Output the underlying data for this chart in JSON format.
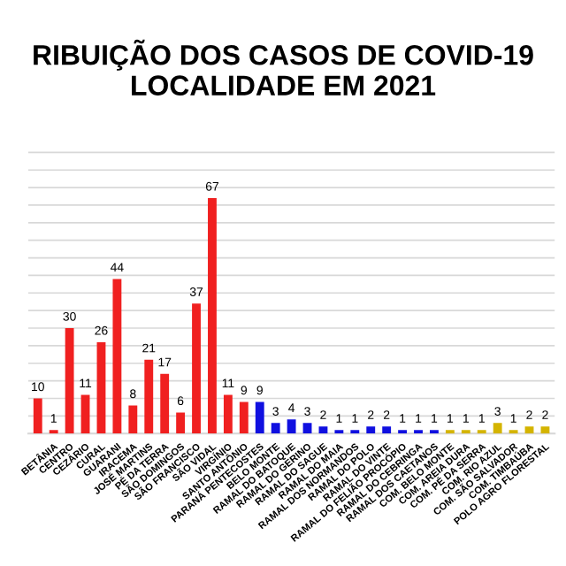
{
  "chart_data": {
    "type": "bar",
    "title": "RIBUIÇÃO DOS CASOS DE COVID-19\nLOCALIDADE EM 2021",
    "categories": [
      null,
      "BETÂNIA",
      "CENTRO",
      "CEZÁRIO",
      "CURAL",
      "GUARANI",
      "IRACEMA",
      "JOSÉ MARTINS",
      "PÉ DA TERRA",
      "SÃO DOMINGOS",
      "SÃO FRANCISCO",
      "SÃO VIDAL",
      "VIRGÍNIO",
      "SANTO ANTÔNIO",
      "PARANÁ PENTECOSTES",
      "BELO MONTE",
      "RAMAL DO BATOQUE",
      "RAMAL DO GERINO",
      "RAMAL DO SAGUE",
      "RAMAL DO MAIA",
      "RAMAL DOS NORMANDOS",
      "RAMAL DO POLO",
      "RAMAL DO VINTE",
      "RAMAL DO FELIÃO PROCÓPIO",
      "RAMAL DO CEBRINGA",
      "RAMAL DOS CAETANOS",
      "COM. BELO MONTE",
      "COM. AREIA DURA",
      "COM. PÉ DA SERRA",
      "COM. RIO AZUL",
      "COM. SÃO SALVADOR",
      "COM. TIMBAÚBA",
      "POLO AGRO FLORESTAL"
    ],
    "values": [
      10,
      1,
      30,
      11,
      26,
      44,
      8,
      21,
      17,
      6,
      37,
      67,
      11,
      9,
      9,
      3,
      4,
      3,
      2,
      1,
      1,
      2,
      2,
      1,
      1,
      1,
      1,
      1,
      1,
      3,
      1,
      2,
      2
    ],
    "colors": [
      "#f02020",
      "#f02020",
      "#f02020",
      "#f02020",
      "#f02020",
      "#f02020",
      "#f02020",
      "#f02020",
      "#f02020",
      "#f02020",
      "#f02020",
      "#f02020",
      "#f02020",
      "#f02020",
      "#1010e0",
      "#1010e0",
      "#1010e0",
      "#1010e0",
      "#1010e0",
      "#1010e0",
      "#1010e0",
      "#1010e0",
      "#1010e0",
      "#1010e0",
      "#1010e0",
      "#1010e0",
      "#d4b400",
      "#d4b400",
      "#d4b400",
      "#d4b400",
      "#d4b400",
      "#d4b400",
      "#d4b400"
    ],
    "data_labels": true,
    "grid": "y",
    "legend": false,
    "tick_labels": "x"
  }
}
